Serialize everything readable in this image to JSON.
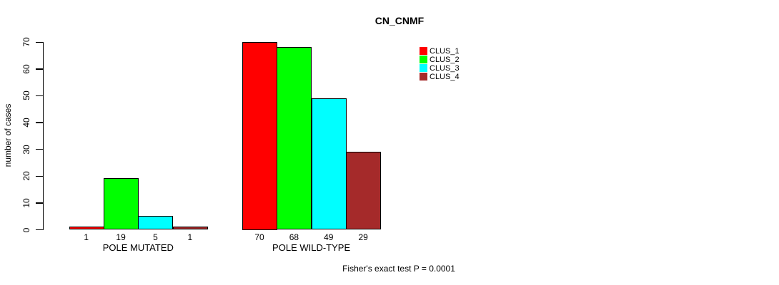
{
  "figure": {
    "title": "CN_CNMF",
    "annotation": "Fisher's exact test P = 0.0001"
  },
  "chart_data": {
    "type": "bar",
    "title": "CN_CNMF",
    "xlabel": "",
    "ylabel": "number of cases",
    "categories": [
      "POLE MUTATED",
      "POLE WILD-TYPE"
    ],
    "series": [
      {
        "name": "CLUS_1",
        "color": "#FF0000",
        "values": [
          1,
          70
        ]
      },
      {
        "name": "CLUS_2",
        "color": "#00FF00",
        "values": [
          19,
          68
        ]
      },
      {
        "name": "CLUS_3",
        "color": "#00FFFF",
        "values": [
          5,
          49
        ]
      },
      {
        "name": "CLUS_4",
        "color": "#A52A2A",
        "values": [
          1,
          29
        ]
      }
    ],
    "ylim": [
      0,
      70
    ],
    "yticks": [
      0,
      10,
      20,
      30,
      40,
      50,
      60,
      70
    ],
    "bar_value_labels": true,
    "grid": false,
    "legend_position": "top-right",
    "legend_entries": [
      "CLUS_1",
      "CLUS_2",
      "CLUS_3",
      "CLUS_4"
    ],
    "annotation": "Fisher's exact test P = 0.0001"
  }
}
